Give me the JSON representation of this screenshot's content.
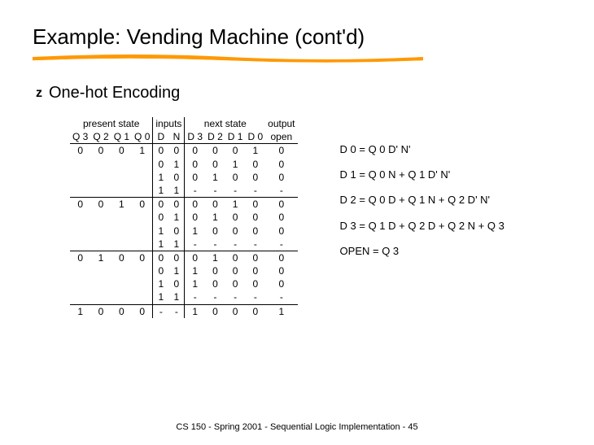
{
  "title": "Example: Vending Machine (cont'd)",
  "underline_color": "#ff9900",
  "bullet": {
    "marker": "z",
    "text": "One-hot Encoding"
  },
  "table": {
    "group_headers": [
      "present state",
      "inputs",
      "next state",
      "output"
    ],
    "col_headers": [
      "Q 3",
      "Q 2",
      "Q 1",
      "Q 0",
      "D",
      "N",
      "D 3",
      "D 2",
      "D 1",
      "D 0",
      "open"
    ],
    "sections": [
      {
        "present": [
          "0",
          "0",
          "0",
          "1"
        ],
        "rows": [
          [
            "0",
            "0",
            "0",
            "0",
            "0",
            "1",
            "0"
          ],
          [
            "0",
            "1",
            "0",
            "0",
            "1",
            "0",
            "0"
          ],
          [
            "1",
            "0",
            "0",
            "1",
            "0",
            "0",
            "0"
          ],
          [
            "1",
            "1",
            "-",
            "-",
            "-",
            "-",
            "-"
          ]
        ]
      },
      {
        "present": [
          "0",
          "0",
          "1",
          "0"
        ],
        "rows": [
          [
            "0",
            "0",
            "0",
            "0",
            "1",
            "0",
            "0"
          ],
          [
            "0",
            "1",
            "0",
            "1",
            "0",
            "0",
            "0"
          ],
          [
            "1",
            "0",
            "1",
            "0",
            "0",
            "0",
            "0"
          ],
          [
            "1",
            "1",
            "-",
            "-",
            "-",
            "-",
            "-"
          ]
        ]
      },
      {
        "present": [
          "0",
          "1",
          "0",
          "0"
        ],
        "rows": [
          [
            "0",
            "0",
            "0",
            "1",
            "0",
            "0",
            "0"
          ],
          [
            "0",
            "1",
            "1",
            "0",
            "0",
            "0",
            "0"
          ],
          [
            "1",
            "0",
            "1",
            "0",
            "0",
            "0",
            "0"
          ],
          [
            "1",
            "1",
            "-",
            "-",
            "-",
            "-",
            "-"
          ]
        ]
      },
      {
        "present": [
          "1",
          "0",
          "0",
          "0"
        ],
        "rows": [
          [
            "-",
            "-",
            "1",
            "0",
            "0",
            "0",
            "1"
          ]
        ]
      }
    ]
  },
  "equations": [
    "D 0 = Q 0 D' N'",
    "D 1 = Q 0 N + Q 1 D' N'",
    "D 2 = Q 0 D + Q 1 N + Q 2 D' N'",
    "D 3 = Q 1 D + Q 2 D + Q 2 N + Q 3",
    "OPEN = Q 3"
  ],
  "footer": "CS 150 - Spring  2001 - Sequential Logic Implementation - 45"
}
